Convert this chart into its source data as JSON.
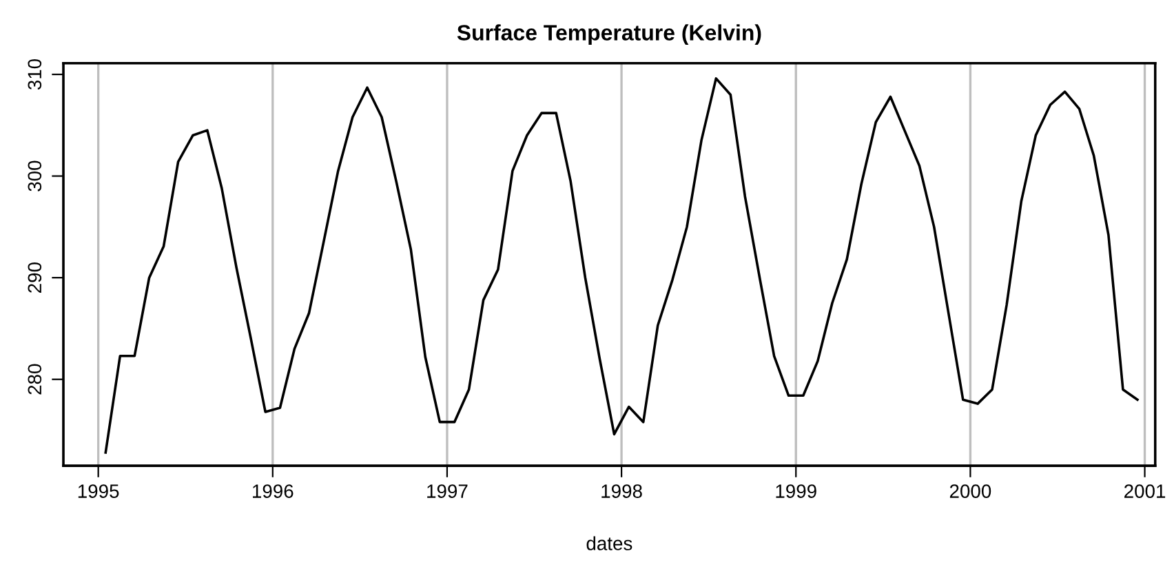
{
  "chart_data": {
    "type": "line",
    "title": "Surface Temperature (Kelvin)",
    "xlabel": "dates",
    "x": [
      1995.042,
      1995.125,
      1995.208,
      1995.292,
      1995.375,
      1995.458,
      1995.542,
      1995.625,
      1995.708,
      1995.792,
      1995.875,
      1995.958,
      1996.042,
      1996.125,
      1996.208,
      1996.292,
      1996.375,
      1996.458,
      1996.542,
      1996.625,
      1996.708,
      1996.792,
      1996.875,
      1996.958,
      1997.042,
      1997.125,
      1997.208,
      1997.292,
      1997.375,
      1997.458,
      1997.542,
      1997.625,
      1997.708,
      1997.792,
      1997.875,
      1997.958,
      1998.042,
      1998.125,
      1998.208,
      1998.292,
      1998.375,
      1998.458,
      1998.542,
      1998.625,
      1998.708,
      1998.792,
      1998.875,
      1998.958,
      1999.042,
      1999.125,
      1999.208,
      1999.292,
      1999.375,
      1999.458,
      1999.542,
      1999.625,
      1999.708,
      1999.792,
      1999.875,
      1999.958,
      2000.042,
      2000.125,
      2000.208,
      2000.292,
      2000.375,
      2000.458,
      2000.542,
      2000.625,
      2000.708,
      2000.792,
      2000.875,
      2000.958
    ],
    "series": [
      {
        "color": "#000000",
        "values": [
          272.8,
          282.3,
          282.3,
          290,
          293.1,
          301.4,
          304,
          304.5,
          298.8,
          291,
          284,
          276.8,
          277.2,
          283,
          286.5,
          293.5,
          300.5,
          305.8,
          308.7,
          305.8,
          299.5,
          292.8,
          282.2,
          275.8,
          275.8,
          279,
          287.8,
          290.8,
          300.5,
          304,
          306.2,
          306.2,
          299.5,
          290,
          282,
          274.6,
          277.3,
          275.8,
          285.3,
          289.8,
          295,
          303.5,
          309.6,
          308,
          298,
          290,
          282.3,
          278.4,
          278.4,
          281.8,
          287.5,
          291.8,
          299.2,
          305.3,
          307.8,
          304.4,
          301,
          295,
          286.5,
          278,
          277.6,
          279,
          287.3,
          297.5,
          304,
          307,
          308.3,
          306.6,
          302,
          294.2,
          279,
          278
        ]
      }
    ],
    "xlim": [
      1994.8,
      2001.06
    ],
    "ylim": [
      271.5,
      311.1
    ],
    "xticks": [
      1995,
      1996,
      1997,
      1998,
      1999,
      2000,
      2001
    ],
    "yticks": [
      280,
      290,
      300,
      310
    ],
    "grid": "x",
    "line_style": "solid",
    "marker": "none"
  }
}
